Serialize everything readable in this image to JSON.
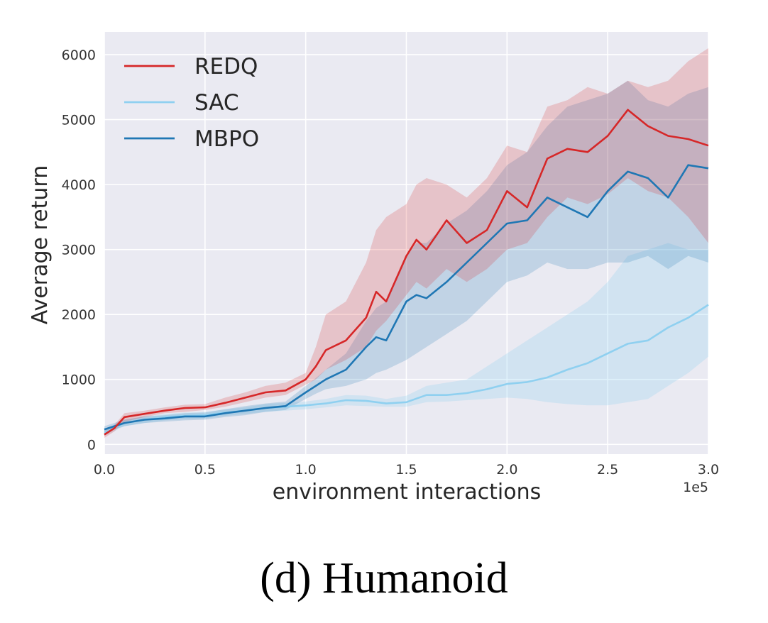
{
  "caption": "(d) Humanoid",
  "colors": {
    "plot_background": "#eaeaf2",
    "grid": "#ffffff",
    "REDQ": "#d62728",
    "SAC": "#8fd0f0",
    "MBPO": "#1f77b4"
  },
  "chart_data": {
    "type": "line",
    "xlabel": "environment interactions",
    "ylabel": "Average return",
    "x_offset_text": "1e5",
    "xlim": [
      0.0,
      3.0
    ],
    "ylim": [
      -150,
      6350
    ],
    "xticks": [
      0.0,
      0.5,
      1.0,
      1.5,
      2.0,
      2.5,
      3.0
    ],
    "xtick_labels": [
      "0.0",
      "0.5",
      "1.0",
      "1.5",
      "2.0",
      "2.5",
      "3.0"
    ],
    "yticks": [
      0,
      1000,
      2000,
      3000,
      4000,
      5000,
      6000
    ],
    "ytick_labels": [
      "0",
      "1000",
      "2000",
      "3000",
      "4000",
      "5000",
      "6000"
    ],
    "grid": true,
    "legend_position": "top-left",
    "x_units_note": "x values in units of 1e5 environment interactions",
    "series": [
      {
        "name": "REDQ",
        "color": "#d62728",
        "x": [
          0.0,
          0.05,
          0.1,
          0.2,
          0.3,
          0.4,
          0.5,
          0.6,
          0.7,
          0.8,
          0.9,
          1.0,
          1.05,
          1.1,
          1.2,
          1.3,
          1.35,
          1.4,
          1.5,
          1.55,
          1.6,
          1.7,
          1.8,
          1.9,
          2.0,
          2.1,
          2.2,
          2.3,
          2.4,
          2.5,
          2.6,
          2.7,
          2.8,
          2.9,
          3.0
        ],
        "y": [
          150,
          250,
          420,
          470,
          520,
          560,
          570,
          640,
          720,
          800,
          830,
          1000,
          1200,
          1450,
          1600,
          1950,
          2350,
          2200,
          2900,
          3150,
          3000,
          3450,
          3100,
          3300,
          3900,
          3650,
          4400,
          4550,
          4500,
          4750,
          5150,
          4900,
          4750,
          4700,
          4600
        ],
        "lower": [
          100,
          200,
          350,
          420,
          480,
          500,
          530,
          580,
          650,
          720,
          760,
          920,
          1000,
          1150,
          1300,
          1500,
          1750,
          1900,
          2300,
          2500,
          2400,
          2700,
          2500,
          2700,
          3000,
          3100,
          3500,
          3800,
          3700,
          3850,
          4100,
          3900,
          3800,
          3500,
          3100
        ],
        "upper": [
          200,
          300,
          480,
          520,
          570,
          610,
          620,
          720,
          800,
          900,
          950,
          1100,
          1500,
          2000,
          2200,
          2800,
          3300,
          3500,
          3700,
          4000,
          4100,
          4000,
          3800,
          4100,
          4600,
          4500,
          5200,
          5300,
          5500,
          5400,
          5600,
          5500,
          5600,
          5900,
          6100
        ]
      },
      {
        "name": "SAC",
        "color": "#8fd0f0",
        "x": [
          0.0,
          0.1,
          0.2,
          0.3,
          0.4,
          0.5,
          0.6,
          0.7,
          0.8,
          0.9,
          1.0,
          1.1,
          1.2,
          1.3,
          1.4,
          1.5,
          1.6,
          1.7,
          1.8,
          1.9,
          2.0,
          2.1,
          2.2,
          2.3,
          2.4,
          2.5,
          2.6,
          2.7,
          2.8,
          2.9,
          3.0
        ],
        "y": [
          180,
          330,
          380,
          420,
          440,
          450,
          490,
          520,
          560,
          580,
          600,
          630,
          680,
          670,
          630,
          650,
          760,
          760,
          790,
          850,
          930,
          960,
          1030,
          1150,
          1250,
          1400,
          1550,
          1600,
          1800,
          1950,
          2150
        ],
        "lower": [
          130,
          280,
          330,
          370,
          390,
          400,
          440,
          470,
          500,
          520,
          540,
          570,
          600,
          590,
          580,
          580,
          650,
          660,
          680,
          700,
          720,
          700,
          650,
          620,
          600,
          600,
          650,
          700,
          900,
          1100,
          1350
        ],
        "upper": [
          230,
          380,
          430,
          470,
          490,
          500,
          540,
          570,
          620,
          640,
          660,
          700,
          760,
          750,
          700,
          750,
          900,
          950,
          1000,
          1200,
          1400,
          1600,
          1800,
          2000,
          2200,
          2500,
          2900,
          3000,
          3100,
          3000,
          3000
        ]
      },
      {
        "name": "MBPO",
        "color": "#1f77b4",
        "x": [
          0.0,
          0.1,
          0.2,
          0.3,
          0.4,
          0.5,
          0.6,
          0.7,
          0.8,
          0.9,
          1.0,
          1.05,
          1.1,
          1.2,
          1.3,
          1.35,
          1.4,
          1.5,
          1.55,
          1.6,
          1.7,
          1.8,
          1.9,
          2.0,
          2.1,
          2.2,
          2.3,
          2.4,
          2.5,
          2.6,
          2.7,
          2.8,
          2.9,
          3.0
        ],
        "y": [
          230,
          330,
          380,
          400,
          430,
          430,
          480,
          520,
          560,
          590,
          800,
          900,
          1000,
          1150,
          1500,
          1650,
          1600,
          2200,
          2300,
          2250,
          2500,
          2800,
          3100,
          3400,
          3450,
          3800,
          3650,
          3500,
          3900,
          4200,
          4100,
          3800,
          4300,
          4250
        ],
        "lower": [
          180,
          280,
          330,
          350,
          370,
          380,
          420,
          450,
          500,
          530,
          700,
          780,
          850,
          900,
          1000,
          1100,
          1150,
          1300,
          1400,
          1500,
          1700,
          1900,
          2200,
          2500,
          2600,
          2800,
          2700,
          2700,
          2800,
          2800,
          2900,
          2700,
          2900,
          2800
        ],
        "upper": [
          280,
          380,
          430,
          450,
          480,
          490,
          540,
          590,
          630,
          660,
          900,
          1020,
          1150,
          1400,
          1900,
          2100,
          2200,
          2900,
          3100,
          3100,
          3400,
          3600,
          3900,
          4300,
          4500,
          4900,
          5200,
          5300,
          5400,
          5600,
          5300,
          5200,
          5400,
          5500
        ]
      }
    ]
  }
}
